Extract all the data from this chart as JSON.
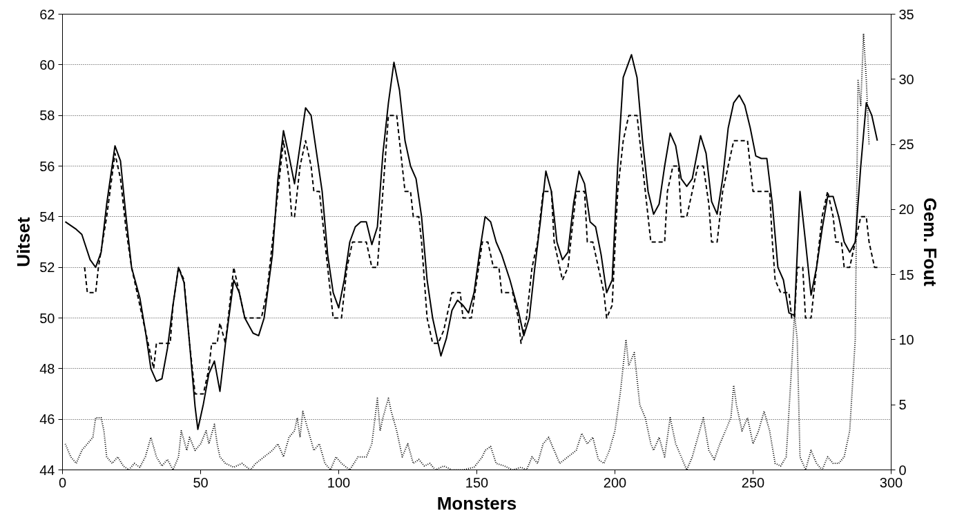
{
  "chart_data": {
    "type": "line",
    "xlabel": "Monsters",
    "ylabel": "Uitset",
    "y2label": "Gem. Fout",
    "xlim": [
      0,
      300
    ],
    "xticks": [
      0,
      50,
      100,
      150,
      200,
      250,
      300
    ],
    "ylim": [
      44,
      62
    ],
    "yticks": [
      44,
      46,
      48,
      50,
      52,
      54,
      56,
      58,
      60,
      62
    ],
    "y2lim": [
      0,
      35
    ],
    "y2ticks": [
      0,
      5,
      10,
      15,
      20,
      25,
      30,
      35
    ],
    "grid": "y",
    "marker": "none",
    "series": [
      {
        "color": "#000000",
        "line_style": "solid",
        "x": [
          1,
          5,
          7,
          10,
          12,
          14,
          16,
          19,
          21,
          23,
          25,
          28,
          30,
          32,
          34,
          36,
          38,
          40,
          42,
          44,
          46,
          48,
          49,
          51,
          53,
          55,
          57,
          59,
          62,
          64,
          66,
          69,
          71,
          73,
          76,
          78,
          80,
          82,
          84,
          86,
          88,
          90,
          92,
          94,
          96,
          98,
          100,
          102,
          104,
          106,
          108,
          110,
          112,
          114,
          116,
          118,
          120,
          122,
          124,
          126,
          128,
          130,
          132,
          134,
          137,
          139,
          141,
          143,
          145,
          147,
          149,
          151,
          153,
          155,
          157,
          159,
          162,
          165,
          167,
          169,
          171,
          173,
          175,
          177,
          179,
          181,
          183,
          185,
          187,
          189,
          191,
          193,
          195,
          197,
          199,
          201,
          203,
          206,
          208,
          210,
          212,
          214,
          216,
          218,
          220,
          222,
          224,
          226,
          228,
          231,
          233,
          235,
          237,
          239,
          241,
          243,
          245,
          247,
          249,
          251,
          253,
          255,
          257,
          259,
          261,
          263,
          265,
          267,
          269,
          271,
          273,
          275,
          277,
          279,
          281,
          283,
          285,
          287,
          289,
          291,
          293,
          295
        ],
        "values": [
          53.8,
          53.5,
          53.3,
          52.3,
          52.0,
          52.6,
          54.5,
          56.8,
          56.2,
          54,
          52,
          50.8,
          49.5,
          48,
          47.5,
          47.6,
          48.8,
          50.5,
          52.0,
          51.4,
          49,
          46.5,
          45.6,
          46.6,
          47.8,
          48.3,
          47.1,
          49,
          51.5,
          51,
          50,
          49.4,
          49.3,
          50,
          52.5,
          55.5,
          57.4,
          56.4,
          55.3,
          56.8,
          58.3,
          58,
          56.5,
          55,
          52.5,
          51,
          50.4,
          51.5,
          53,
          53.6,
          53.8,
          53.8,
          52.9,
          53.6,
          56.5,
          58.5,
          60.1,
          59,
          57,
          56,
          55.5,
          54,
          51.5,
          50,
          48.5,
          49.2,
          50.3,
          50.7,
          50.5,
          50.2,
          51,
          52.6,
          54,
          53.8,
          53,
          52.5,
          51.5,
          50.3,
          49.3,
          50,
          52,
          53.8,
          55.8,
          55,
          53,
          52.3,
          52.6,
          54.5,
          55.8,
          55.3,
          53.8,
          53.6,
          52.5,
          51,
          51.5,
          56,
          59.5,
          60.4,
          59.5,
          57,
          55,
          54.1,
          54.5,
          56,
          57.3,
          56.8,
          55.5,
          55.2,
          55.5,
          57.2,
          56.5,
          54.6,
          54.1,
          55.5,
          57.5,
          58.5,
          58.8,
          58.4,
          57.5,
          56.4,
          56.3,
          56.3,
          54.5,
          52,
          51.5,
          50.2,
          50.1,
          55,
          53,
          50.9,
          52,
          53.5,
          54.8,
          54.8,
          54,
          53,
          52.6,
          53,
          56,
          58.5,
          58,
          57
        ]
      },
      {
        "color": "#000000",
        "line_style": "dashed",
        "x": [
          8,
          9,
          12,
          13,
          16,
          19,
          21,
          23,
          25,
          28,
          30,
          32,
          33,
          34,
          39,
          40,
          42,
          44,
          46,
          48,
          51,
          53,
          54,
          56,
          57,
          59,
          62,
          64,
          66,
          72,
          74,
          76,
          78,
          80,
          82,
          83,
          84,
          86,
          88,
          90,
          91,
          93,
          95,
          97,
          98,
          101,
          103,
          105,
          110,
          112,
          114,
          116,
          118,
          121,
          123,
          124,
          126,
          127,
          129,
          130,
          132,
          134,
          136,
          138,
          140,
          141,
          144,
          145,
          148,
          150,
          152,
          154,
          156,
          158,
          159,
          163,
          165,
          166,
          168,
          170,
          172,
          174,
          177,
          178,
          180,
          181,
          183,
          185,
          186,
          189,
          190,
          192,
          194,
          196,
          197,
          199,
          201,
          203,
          205,
          208,
          210,
          212,
          213,
          218,
          219,
          221,
          223,
          224,
          226,
          228,
          230,
          232,
          234,
          235,
          237,
          239,
          241,
          243,
          248,
          250,
          256,
          257,
          258,
          260,
          263,
          264,
          265,
          266,
          268,
          269,
          271,
          273,
          275,
          277,
          279,
          280,
          282,
          283,
          285,
          287,
          289,
          291,
          292,
          294,
          296
        ],
        "values": [
          52,
          51,
          51,
          52,
          54,
          56.5,
          55.5,
          53.5,
          52,
          50.5,
          49.5,
          48.5,
          48,
          49,
          49,
          50.5,
          52,
          51.5,
          49,
          47,
          47,
          48,
          49,
          49,
          49.8,
          49,
          52,
          51,
          50,
          50,
          51,
          53,
          55,
          57,
          55.5,
          54,
          54,
          56,
          57,
          56,
          55,
          55,
          53,
          51,
          50,
          50,
          52,
          53,
          53,
          52,
          52,
          55,
          58,
          58,
          56,
          55,
          55,
          54,
          54,
          53,
          50,
          49,
          49,
          49.5,
          50.5,
          51,
          51,
          50,
          50,
          51.5,
          53,
          53,
          52,
          52,
          51,
          51,
          50,
          49,
          50,
          52,
          53,
          55,
          55,
          53,
          52,
          51.5,
          52,
          54,
          55,
          55,
          53,
          53,
          52,
          51,
          50,
          50.5,
          55,
          57,
          58,
          58,
          56,
          54,
          53,
          53,
          55,
          56,
          56,
          54,
          54,
          55,
          56,
          56,
          54.5,
          53,
          53,
          55,
          56,
          57,
          57,
          55,
          55,
          53,
          51.5,
          51,
          51,
          50,
          50,
          52,
          52,
          50,
          50,
          52,
          54,
          55,
          54,
          53,
          53,
          52,
          52,
          53,
          54,
          54,
          53,
          52,
          52
        ]
      },
      {
        "color": "#000000",
        "line_style": "dotted",
        "axis": "y2",
        "x": [
          1,
          3,
          5,
          7,
          9,
          11,
          12,
          14,
          15,
          16,
          18,
          20,
          22,
          24,
          26,
          28,
          30,
          32,
          34,
          36,
          38,
          40,
          42,
          43,
          45,
          46,
          48,
          50,
          52,
          53,
          55,
          56,
          57,
          59,
          62,
          65,
          68,
          70,
          73,
          76,
          78,
          80,
          82,
          84,
          85,
          86,
          87,
          89,
          91,
          93,
          95,
          97,
          99,
          101,
          104,
          107,
          110,
          112,
          114,
          115,
          116,
          118,
          119,
          121,
          123,
          125,
          127,
          129,
          131,
          133,
          135,
          138,
          141,
          145,
          149,
          152,
          153,
          155,
          157,
          160,
          163,
          166,
          168,
          170,
          172,
          174,
          176,
          178,
          180,
          183,
          186,
          188,
          190,
          192,
          194,
          196,
          198,
          200,
          202,
          204,
          205,
          207,
          209,
          211,
          213,
          214,
          216,
          218,
          220,
          222,
          224,
          226,
          228,
          230,
          232,
          234,
          236,
          238,
          240,
          242,
          243,
          244,
          246,
          248,
          250,
          252,
          254,
          256,
          258,
          260,
          262,
          264,
          265,
          266,
          267,
          269,
          271,
          273,
          275,
          277,
          279,
          281,
          283,
          285,
          287,
          288,
          289,
          290,
          291,
          292
        ],
        "values": [
          2,
          1,
          0.5,
          1.5,
          2,
          2.5,
          4,
          4,
          3,
          1,
          0.5,
          1,
          0.3,
          0,
          0.5,
          0.2,
          1,
          2.5,
          1,
          0.3,
          0.8,
          0,
          1,
          3,
          1.5,
          2.5,
          1.5,
          2,
          3,
          2,
          3.5,
          2,
          1,
          0.5,
          0.2,
          0.5,
          0,
          0.5,
          1,
          1.5,
          2,
          1,
          2.5,
          3,
          4,
          2.5,
          4.5,
          3,
          1.5,
          2,
          0.5,
          0,
          1,
          0.5,
          0,
          1,
          1,
          2,
          5.5,
          3,
          4,
          5.5,
          4.5,
          3,
          1,
          2,
          0.5,
          0.8,
          0.3,
          0.5,
          0,
          0.3,
          0,
          0,
          0.2,
          1,
          1.5,
          1.8,
          0.5,
          0.3,
          0,
          0.2,
          0,
          1,
          0.5,
          2,
          2.5,
          1.5,
          0.5,
          1,
          1.5,
          2.8,
          2,
          2.5,
          0.8,
          0.5,
          1.5,
          3,
          6,
          10,
          8,
          9,
          5,
          4,
          2,
          1.5,
          2.5,
          1,
          4,
          2,
          1,
          0,
          1,
          2.5,
          4,
          1.5,
          0.8,
          2,
          3,
          4,
          6.5,
          5,
          3,
          4,
          2,
          3,
          4.5,
          3,
          0.5,
          0.3,
          1,
          8,
          12,
          10,
          1,
          0,
          1.5,
          0.5,
          0,
          1,
          0.5,
          0.5,
          1,
          3,
          10,
          30,
          28,
          33.5,
          30,
          25
        ]
      }
    ]
  }
}
